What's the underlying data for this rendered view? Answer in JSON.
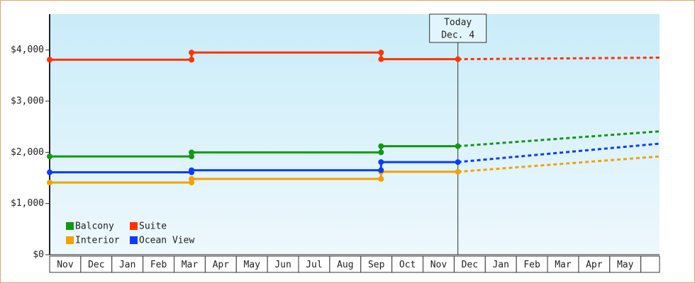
{
  "chart_data": {
    "type": "line",
    "categories": [
      "Nov",
      "Dec",
      "Jan",
      "Feb",
      "Mar",
      "Apr",
      "May",
      "Jun",
      "Jul",
      "Aug",
      "Sep",
      "Oct",
      "Nov",
      "Dec",
      "Jan",
      "Feb",
      "Mar",
      "Apr",
      "May"
    ],
    "xlim": [
      0,
      19.6
    ],
    "ylim": [
      0,
      4700
    ],
    "yticks": [
      {
        "value": 0,
        "label": "$0"
      },
      {
        "value": 1000,
        "label": "$1,000"
      },
      {
        "value": 2000,
        "label": "$2,000"
      },
      {
        "value": 3000,
        "label": "$3,000"
      },
      {
        "value": 4000,
        "label": "$4,000"
      }
    ],
    "series": [
      {
        "name": "Balcony",
        "color": "#119911",
        "x": [
          0,
          4.56,
          4.56,
          10.65,
          10.65,
          13.12
        ],
        "values": [
          1920,
          1920,
          2000,
          2000,
          2120,
          2120
        ],
        "forecast_x": [
          13.12,
          19.6
        ],
        "forecast_values": [
          2120,
          2410
        ]
      },
      {
        "name": "Suite",
        "color": "#ff3300",
        "x": [
          0,
          4.56,
          4.56,
          10.65,
          10.65,
          13.12
        ],
        "values": [
          3810,
          3810,
          3950,
          3950,
          3820,
          3820
        ],
        "forecast_x": [
          13.12,
          19.6
        ],
        "forecast_values": [
          3820,
          3850
        ]
      },
      {
        "name": "Interior",
        "color": "#f5a100",
        "x": [
          0,
          4.56,
          4.56,
          10.65,
          10.65,
          13.12
        ],
        "values": [
          1410,
          1410,
          1480,
          1480,
          1620,
          1620
        ],
        "forecast_x": [
          13.12,
          19.6
        ],
        "forecast_values": [
          1620,
          1920
        ]
      },
      {
        "name": "Ocean View",
        "color": "#0a3cff",
        "x": [
          0,
          4.56,
          4.56,
          10.65,
          10.65,
          13.12
        ],
        "values": [
          1610,
          1610,
          1650,
          1650,
          1810,
          1810
        ],
        "forecast_x": [
          13.12,
          19.6
        ],
        "forecast_values": [
          1810,
          2170
        ]
      }
    ],
    "annotation": {
      "x": 13.12,
      "lines": [
        "Today",
        "Dec. 4"
      ]
    },
    "legend": "bottom-left"
  }
}
